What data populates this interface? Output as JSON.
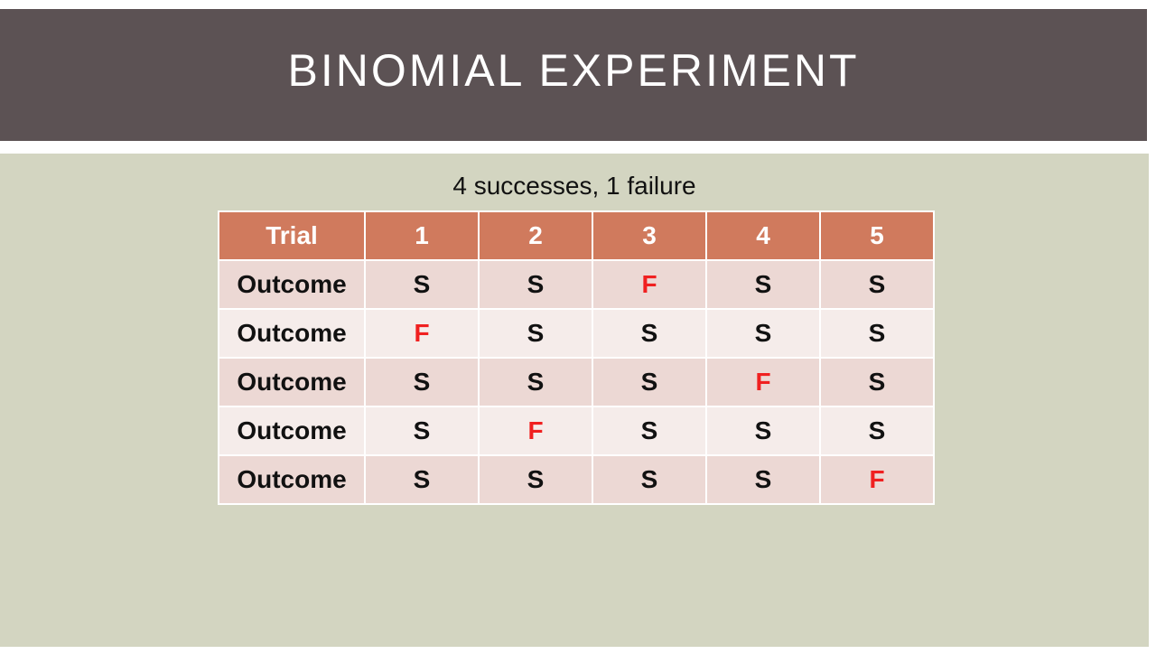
{
  "slide": {
    "title": "BINOMIAL EXPERIMENT",
    "subtitle": "4 successes, 1 failure"
  },
  "table": {
    "header": [
      "Trial",
      "1",
      "2",
      "3",
      "4",
      "5"
    ],
    "rows": [
      {
        "label": "Outcome",
        "cells": [
          "S",
          "S",
          "F",
          "S",
          "S"
        ]
      },
      {
        "label": "Outcome",
        "cells": [
          "F",
          "S",
          "S",
          "S",
          "S"
        ]
      },
      {
        "label": "Outcome",
        "cells": [
          "S",
          "S",
          "S",
          "F",
          "S"
        ]
      },
      {
        "label": "Outcome",
        "cells": [
          "S",
          "F",
          "S",
          "S",
          "S"
        ]
      },
      {
        "label": "Outcome",
        "cells": [
          "S",
          "S",
          "S",
          "S",
          "F"
        ]
      }
    ]
  },
  "colors": {
    "title_band": "#5c5254",
    "content_background": "#d3d5c1",
    "header_fill": "#d07a5d",
    "row_fill_a": "#ecd8d4",
    "row_fill_b": "#f5ecea",
    "failure_text": "#f02020"
  }
}
